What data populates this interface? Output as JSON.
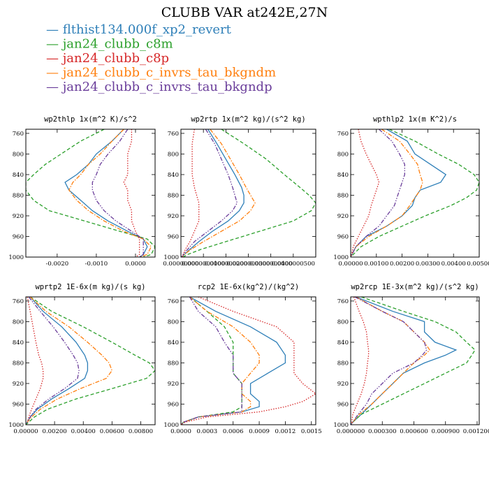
{
  "figure": {
    "title": "CLUBB VAR at242E,27N"
  },
  "legend": {
    "symbol": "—",
    "items": [
      {
        "label": "flthist134.000f_xp2_revert",
        "color": "#2e7fb8",
        "dash": "solid"
      },
      {
        "label": "jan24_clubb_c8m",
        "color": "#2ca02c",
        "dash": "dashed"
      },
      {
        "label": "jan24_clubb_c8p",
        "color": "#d62728",
        "dash": "dotted"
      },
      {
        "label": "jan24_clubb_c_invrs_tau_bkgndm",
        "color": "#ff7f0e",
        "dash": "dashdot"
      },
      {
        "label": "jan24_clubb_c_invrs_tau_bkgndp",
        "color": "#6a3d9a",
        "dash": "dashdotdot"
      }
    ]
  },
  "chart_data": [
    {
      "type": "line",
      "title": "wp2thlp  1x(m^2 K)/s^2",
      "xlim": [
        -0.0028,
        0.0005
      ],
      "ylim": [
        1000,
        752
      ],
      "xticks": [
        -0.002,
        -0.001,
        0.0
      ],
      "xtick_labels": [
        "-0.0020",
        "-0.0010",
        "0.0000"
      ],
      "yticks": [
        760,
        800,
        840,
        880,
        920,
        960,
        1000
      ],
      "y": [
        752,
        775,
        800,
        820,
        840,
        855,
        870,
        890,
        910,
        930,
        950,
        965,
        980,
        995,
        1000
      ],
      "series": [
        {
          "values": [
            -0.0003,
            -0.0006,
            -0.001,
            -0.0012,
            -0.0015,
            -0.0018,
            -0.0017,
            -0.0014,
            -0.0011,
            -0.0007,
            -0.0002,
            0.0002,
            0.0003,
            0.0002,
            0.0001
          ]
        },
        {
          "values": [
            -0.0008,
            -0.0014,
            -0.0019,
            -0.0023,
            -0.0026,
            -0.0028,
            -0.0028,
            -0.0026,
            -0.0022,
            -0.0013,
            -0.0004,
            0.0003,
            0.0005,
            0.0004,
            0.0002
          ]
        },
        {
          "values": [
            -0.0001,
            -0.0001,
            -0.0002,
            -0.0002,
            -0.0002,
            -0.0003,
            -0.0002,
            -0.0002,
            -0.0001,
            -0.0001,
            0.0,
            0.0001,
            0.0001,
            0.0001,
            0.0
          ]
        },
        {
          "values": [
            -0.0003,
            -0.0006,
            -0.0009,
            -0.0012,
            -0.0014,
            -0.0016,
            -0.0017,
            -0.0015,
            -0.0012,
            -0.0008,
            -0.0003,
            0.0002,
            0.0004,
            0.0003,
            0.0001
          ]
        },
        {
          "values": [
            -0.0002,
            -0.0004,
            -0.0007,
            -0.0009,
            -0.001,
            -0.0011,
            -0.0011,
            -0.001,
            -0.0008,
            -0.0005,
            -0.0001,
            0.0002,
            0.0002,
            0.0002,
            0.0001
          ]
        }
      ]
    },
    {
      "type": "line",
      "title": "wp2rtp  1x(m^2 kg)/(s^2 kg)",
      "xlim": [
        0,
        6e-08
      ],
      "ylim": [
        1000,
        752
      ],
      "xticks": [
        0,
        1e-08,
        2e-08,
        3e-08,
        4e-08,
        5e-08
      ],
      "xtick_labels": [
        "0.00000000",
        "0.0000000100",
        "0.0000000200",
        "0.0000000300",
        "0.0000000400",
        "0.0000000500"
      ],
      "yticks": [
        760,
        800,
        840,
        880,
        920,
        960,
        1000
      ],
      "y": [
        752,
        780,
        810,
        840,
        865,
        880,
        895,
        910,
        930,
        950,
        970,
        985,
        995,
        1000
      ],
      "series": [
        {
          "values": [
            1.2e-08,
            1.6e-08,
            2e-08,
            2.4e-08,
            2.7e-08,
            2.8e-08,
            2.8e-08,
            2.6e-08,
            2.1e-08,
            1.4e-08,
            8e-09,
            4e-09,
            1.5e-09,
            5e-10
          ]
        },
        {
          "values": [
            1.8e-08,
            2.8e-08,
            3.8e-08,
            4.6e-08,
            5.3e-08,
            5.7e-08,
            6e-08,
            5.8e-08,
            5e-08,
            3.5e-08,
            2e-08,
            9e-09,
            3e-09,
            1e-09
          ]
        },
        {
          "values": [
            6e-09,
            5e-09,
            5e-09,
            5e-09,
            6e-09,
            7e-09,
            8e-09,
            8e-09,
            8e-09,
            6e-09,
            4e-09,
            2e-09,
            1e-09,
            3e-10
          ]
        },
        {
          "values": [
            1.3e-08,
            1.8e-08,
            2.2e-08,
            2.6e-08,
            2.9e-08,
            3.1e-08,
            3.3e-08,
            3.1e-08,
            2.6e-08,
            1.8e-08,
            1e-08,
            4.5e-09,
            1.5e-09,
            5e-10
          ]
        },
        {
          "values": [
            1.1e-08,
            1.5e-08,
            1.8e-08,
            2.1e-08,
            2.3e-08,
            2.4e-08,
            2.5e-08,
            2.3e-08,
            1.8e-08,
            1.2e-08,
            6e-09,
            3e-09,
            1e-09,
            3e-10
          ]
        }
      ]
    },
    {
      "type": "line",
      "title": "wpthlp2  1x(m K^2)/s",
      "xlim": [
        0,
        0.005
      ],
      "ylim": [
        1000,
        752
      ],
      "xticks": [
        0,
        0.001,
        0.002,
        0.003,
        0.004,
        0.005
      ],
      "xtick_labels": [
        "0.00000",
        "0.00100",
        "0.00200",
        "0.00300",
        "0.00400",
        "0.00500"
      ],
      "yticks": [
        760,
        800,
        840,
        880,
        920,
        960,
        1000
      ],
      "y": [
        752,
        775,
        800,
        820,
        840,
        855,
        870,
        885,
        900,
        920,
        940,
        960,
        980,
        995,
        1000
      ],
      "series": [
        {
          "values": [
            0.0014,
            0.0022,
            0.0025,
            0.0031,
            0.0037,
            0.0035,
            0.0027,
            0.0025,
            0.0024,
            0.002,
            0.0014,
            0.0006,
            0.0002,
            5e-05,
            0.0
          ]
        },
        {
          "values": [
            0.0015,
            0.0025,
            0.0034,
            0.0042,
            0.0048,
            0.005,
            0.0049,
            0.0045,
            0.0039,
            0.0029,
            0.002,
            0.0011,
            0.0004,
            0.0001,
            0.0
          ]
        },
        {
          "values": [
            0.0003,
            0.0004,
            0.0006,
            0.0008,
            0.001,
            0.0011,
            0.001,
            0.0009,
            0.0008,
            0.0007,
            0.0005,
            0.0003,
            0.0001,
            3e-05,
            0.0
          ]
        },
        {
          "values": [
            0.0012,
            0.0019,
            0.0023,
            0.0026,
            0.0027,
            0.0028,
            0.0027,
            0.0025,
            0.0023,
            0.002,
            0.0014,
            0.0007,
            0.0002,
            5e-05,
            0.0
          ]
        },
        {
          "values": [
            0.0011,
            0.0016,
            0.0019,
            0.0021,
            0.0021,
            0.002,
            0.0019,
            0.0018,
            0.0017,
            0.0014,
            0.0011,
            0.0006,
            0.0002,
            5e-05,
            0.0
          ]
        }
      ]
    },
    {
      "type": "line",
      "title": "wprtp2  1E-6x(m kg)/(s kg)",
      "xlim": [
        0,
        0.009
      ],
      "ylim": [
        1000,
        752
      ],
      "xticks": [
        0,
        0.002,
        0.004,
        0.006,
        0.008
      ],
      "xtick_labels": [
        "0.00000",
        "0.00200",
        "0.00400",
        "0.00600",
        "0.00800"
      ],
      "yticks": [
        760,
        800,
        840,
        880,
        920,
        960,
        1000
      ],
      "y": [
        752,
        780,
        810,
        840,
        865,
        880,
        895,
        910,
        930,
        950,
        970,
        985,
        995,
        1000
      ],
      "series": [
        {
          "values": [
            0.0003,
            0.0012,
            0.0025,
            0.0035,
            0.0041,
            0.0043,
            0.0043,
            0.0041,
            0.003,
            0.0018,
            0.0008,
            0.0003,
            0.0001,
            0.0
          ]
        },
        {
          "values": [
            0.0003,
            0.0018,
            0.004,
            0.006,
            0.0076,
            0.0086,
            0.009,
            0.0084,
            0.006,
            0.0035,
            0.0015,
            0.0006,
            0.0002,
            0.0
          ]
        },
        {
          "values": [
            0.0001,
            0.0003,
            0.0005,
            0.0007,
            0.0009,
            0.0011,
            0.0012,
            0.0012,
            0.001,
            0.0007,
            0.0004,
            0.0002,
            0.0001,
            0.0
          ]
        },
        {
          "values": [
            0.0003,
            0.0014,
            0.003,
            0.0043,
            0.0053,
            0.0058,
            0.006,
            0.0056,
            0.0038,
            0.0022,
            0.001,
            0.0004,
            0.0001,
            0.0
          ]
        },
        {
          "values": [
            0.0002,
            0.001,
            0.0019,
            0.0027,
            0.0033,
            0.0036,
            0.0037,
            0.0036,
            0.0027,
            0.0016,
            0.0007,
            0.0003,
            0.0001,
            0.0
          ]
        }
      ]
    },
    {
      "type": "line",
      "title": "rcp2  1E-6x(kg^2)/(kg^2)",
      "xlim": [
        0,
        0.00155
      ],
      "ylim": [
        1000,
        752
      ],
      "xticks": [
        0,
        0.0003,
        0.0006,
        0.0009,
        0.0012,
        0.0015
      ],
      "xtick_labels": [
        "0.0000",
        "0.0003",
        "0.0006",
        "0.0009",
        "0.0012",
        "0.0015"
      ],
      "yticks": [
        760,
        800,
        840,
        880,
        920,
        960,
        1000
      ],
      "y": [
        752,
        780,
        810,
        840,
        865,
        880,
        900,
        920,
        940,
        955,
        965,
        975,
        985,
        995,
        1000
      ],
      "series": [
        {
          "values": [
            0.0001,
            0.0004,
            0.0008,
            0.0011,
            0.0012,
            0.0012,
            0.001,
            0.0008,
            0.0008,
            0.0009,
            0.0009,
            0.0007,
            0.0002,
            3e-05,
            0.0
          ]
        },
        {
          "values": [
            0.0001,
            0.0003,
            0.0005,
            0.0006,
            0.0006,
            0.0006,
            0.0006,
            0.0007,
            0.0007,
            0.0007,
            0.0007,
            0.0006,
            0.0002,
            3e-05,
            0.0
          ]
        },
        {
          "values": [
            0.0002,
            0.0006,
            0.0011,
            0.0013,
            0.0013,
            0.0013,
            0.0013,
            0.0014,
            0.00155,
            0.0014,
            0.0012,
            0.0009,
            0.0003,
            5e-05,
            0.0
          ]
        },
        {
          "values": [
            0.0001,
            0.0003,
            0.0006,
            0.0008,
            0.0009,
            0.0009,
            0.0008,
            0.0007,
            0.0007,
            0.0008,
            0.0008,
            0.0007,
            0.0002,
            3e-05,
            0.0
          ]
        },
        {
          "values": [
            0.0001,
            0.0002,
            0.0004,
            0.0005,
            0.0006,
            0.0006,
            0.0006,
            0.0007,
            0.0007,
            0.0007,
            0.0007,
            0.0007,
            0.0002,
            3e-05,
            0.0
          ]
        }
      ]
    },
    {
      "type": "line",
      "title": "wp2rcp  1E-3x(m^2 kg)/(s^2 kg)",
      "xlim": [
        0,
        0.00122
      ],
      "ylim": [
        1000,
        752
      ],
      "xticks": [
        0,
        0.0003,
        0.0006,
        0.0009,
        0.0012
      ],
      "xtick_labels": [
        "0.000000",
        "0.000300",
        "0.000600",
        "0.000900",
        "0.001200"
      ],
      "yticks": [
        760,
        800,
        840,
        880,
        920,
        960,
        1000
      ],
      "y": [
        752,
        780,
        800,
        820,
        840,
        855,
        865,
        880,
        900,
        920,
        940,
        960,
        980,
        995,
        1000
      ],
      "series": [
        {
          "values": [
            5e-05,
            0.0004,
            0.0007,
            0.0007,
            0.0008,
            0.001,
            0.0009,
            0.0007,
            0.0005,
            0.0004,
            0.0003,
            0.0002,
            0.0001,
            2e-05,
            0.0
          ]
        },
        {
          "values": [
            0.0001,
            0.0005,
            0.0008,
            0.001,
            0.0011,
            0.00118,
            0.00115,
            0.0011,
            0.0009,
            0.0007,
            0.0005,
            0.0003,
            0.0001,
            2e-05,
            0.0
          ]
        },
        {
          "values": [
            3e-05,
            8e-05,
            0.00012,
            0.00015,
            0.00016,
            0.00017,
            0.00017,
            0.00016,
            0.00015,
            0.00013,
            0.0001,
            6e-05,
            2e-05,
            1e-05,
            0.0
          ]
        },
        {
          "values": [
            5e-05,
            0.0003,
            0.0005,
            0.0006,
            0.0007,
            0.00075,
            0.0007,
            0.0006,
            0.0005,
            0.0004,
            0.0003,
            0.0002,
            8e-05,
            2e-05,
            0.0
          ]
        },
        {
          "values": [
            4e-05,
            0.0003,
            0.0005,
            0.0006,
            0.0007,
            0.00072,
            0.00068,
            0.0006,
            0.0004,
            0.0003,
            0.0002,
            0.00015,
            7e-05,
            2e-05,
            0.0
          ]
        }
      ]
    }
  ]
}
